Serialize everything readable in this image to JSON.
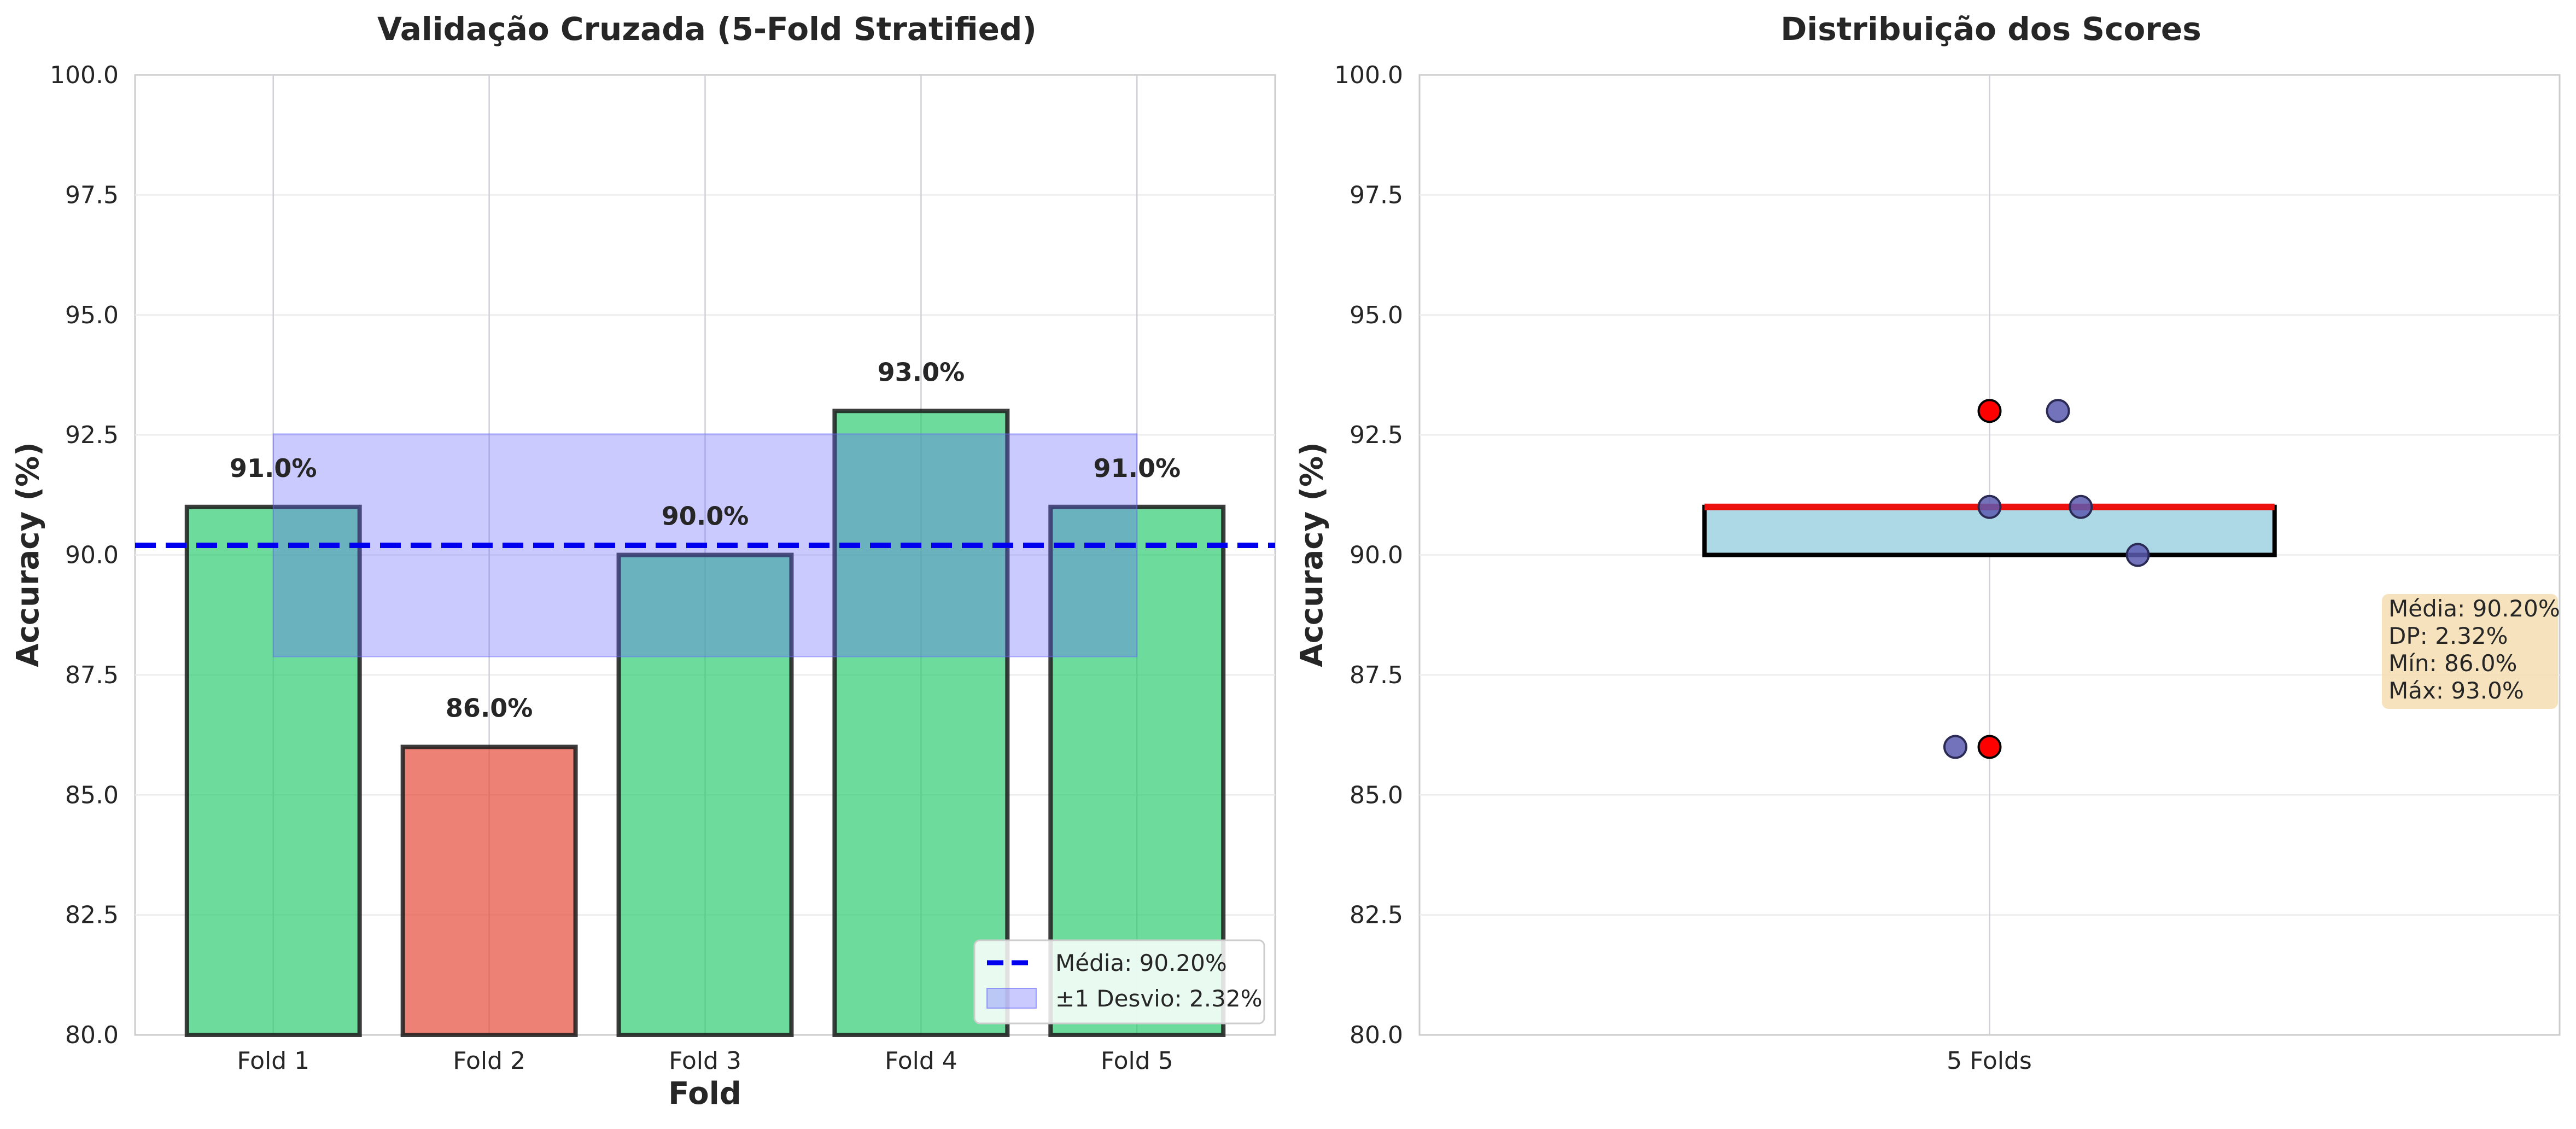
{
  "chart_data": [
    {
      "type": "bar",
      "title": "Validação Cruzada (5-Fold Stratified)",
      "xlabel": "Fold",
      "ylabel": "Accuracy (%)",
      "categories": [
        "Fold 1",
        "Fold 2",
        "Fold 3",
        "Fold 4",
        "Fold 5"
      ],
      "values": [
        91.0,
        86.0,
        90.0,
        93.0,
        91.0
      ],
      "value_labels": [
        "91.0%",
        "86.0%",
        "90.0%",
        "93.0%",
        "91.0%"
      ],
      "bar_colors": [
        "#2ecc71",
        "#e74c3c",
        "#2ecc71",
        "#2ecc71",
        "#2ecc71"
      ],
      "ylim": [
        80,
        100
      ],
      "yticks": [
        80.0,
        82.5,
        85.0,
        87.5,
        90.0,
        92.5,
        95.0,
        97.5,
        100.0
      ],
      "ytick_labels": [
        "80.0",
        "82.5",
        "85.0",
        "87.5",
        "90.0",
        "92.5",
        "95.0",
        "97.5",
        "100.0"
      ],
      "mean": 90.2,
      "std": 2.32,
      "mean_color": "#0000ee",
      "band_color": "#6666ff",
      "grid": true,
      "legend_position": "lower-right",
      "legend": [
        "Média: 90.20%",
        "±1 Desvio: 2.32%"
      ]
    },
    {
      "type": "box",
      "title": "Distribuição dos Scores",
      "ylabel": "Accuracy (%)",
      "category": "5 Folds",
      "values": [
        91.0,
        86.0,
        90.0,
        93.0,
        91.0
      ],
      "ylim": [
        80,
        100
      ],
      "yticks": [
        80.0,
        82.5,
        85.0,
        87.5,
        90.0,
        92.5,
        95.0,
        97.5,
        100.0
      ],
      "ytick_labels": [
        "80.0",
        "82.5",
        "85.0",
        "87.5",
        "90.0",
        "92.5",
        "95.0",
        "97.5",
        "100.0"
      ],
      "box": {
        "q1": 90.0,
        "median": 91.0,
        "q3": 91.0,
        "whisker_low": 90.0,
        "whisker_high": 91.0
      },
      "outliers": [
        93.0,
        86.0
      ],
      "box_fill": "#add8e6",
      "median_color": "#ee1111",
      "outlier_color": "#ff0000",
      "jitter_color": "#5b5bb0",
      "jitter_points": [
        {
          "x_offset": 0.0,
          "y": 91.0
        },
        {
          "x_offset": -0.03,
          "y": 86.0
        },
        {
          "x_offset": 0.13,
          "y": 90.0
        },
        {
          "x_offset": 0.06,
          "y": 93.0
        },
        {
          "x_offset": 0.08,
          "y": 91.0
        }
      ],
      "grid": true,
      "stats_box": [
        "Média: 90.20%",
        "DP: 2.32%",
        "Mín: 86.0%",
        "Máx: 93.0%"
      ],
      "stats_box_color": "#f5deb3"
    }
  ]
}
